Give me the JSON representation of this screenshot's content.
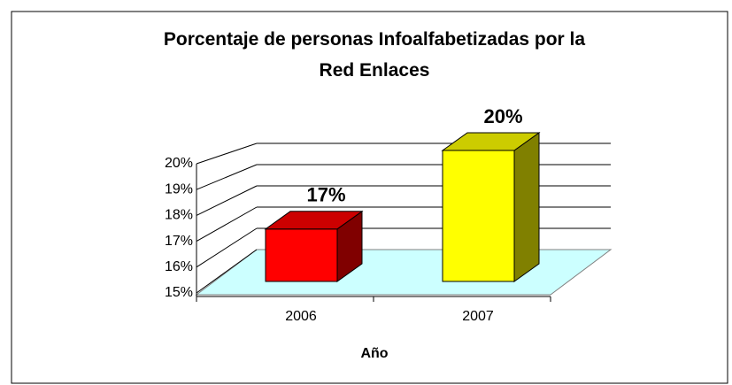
{
  "chart_data": {
    "type": "bar3d",
    "title": "Porcentaje de personas Infoalfabetizadas por la Red Enlaces",
    "xlabel": "Año",
    "categories": [
      "2006",
      "2007"
    ],
    "values": [
      17,
      20
    ],
    "value_labels": [
      "17%",
      "20%"
    ],
    "colors": [
      "#ff0000",
      "#ffff00"
    ],
    "ylim": [
      15,
      20
    ],
    "yticks": [
      {
        "value": 15,
        "label": "15%"
      },
      {
        "value": 16,
        "label": "16%"
      },
      {
        "value": 17,
        "label": "17%"
      },
      {
        "value": 18,
        "label": "18%"
      },
      {
        "value": 19,
        "label": "19%"
      },
      {
        "value": 20,
        "label": "20%"
      }
    ],
    "floor_color": "#ccffff",
    "grid": true
  }
}
